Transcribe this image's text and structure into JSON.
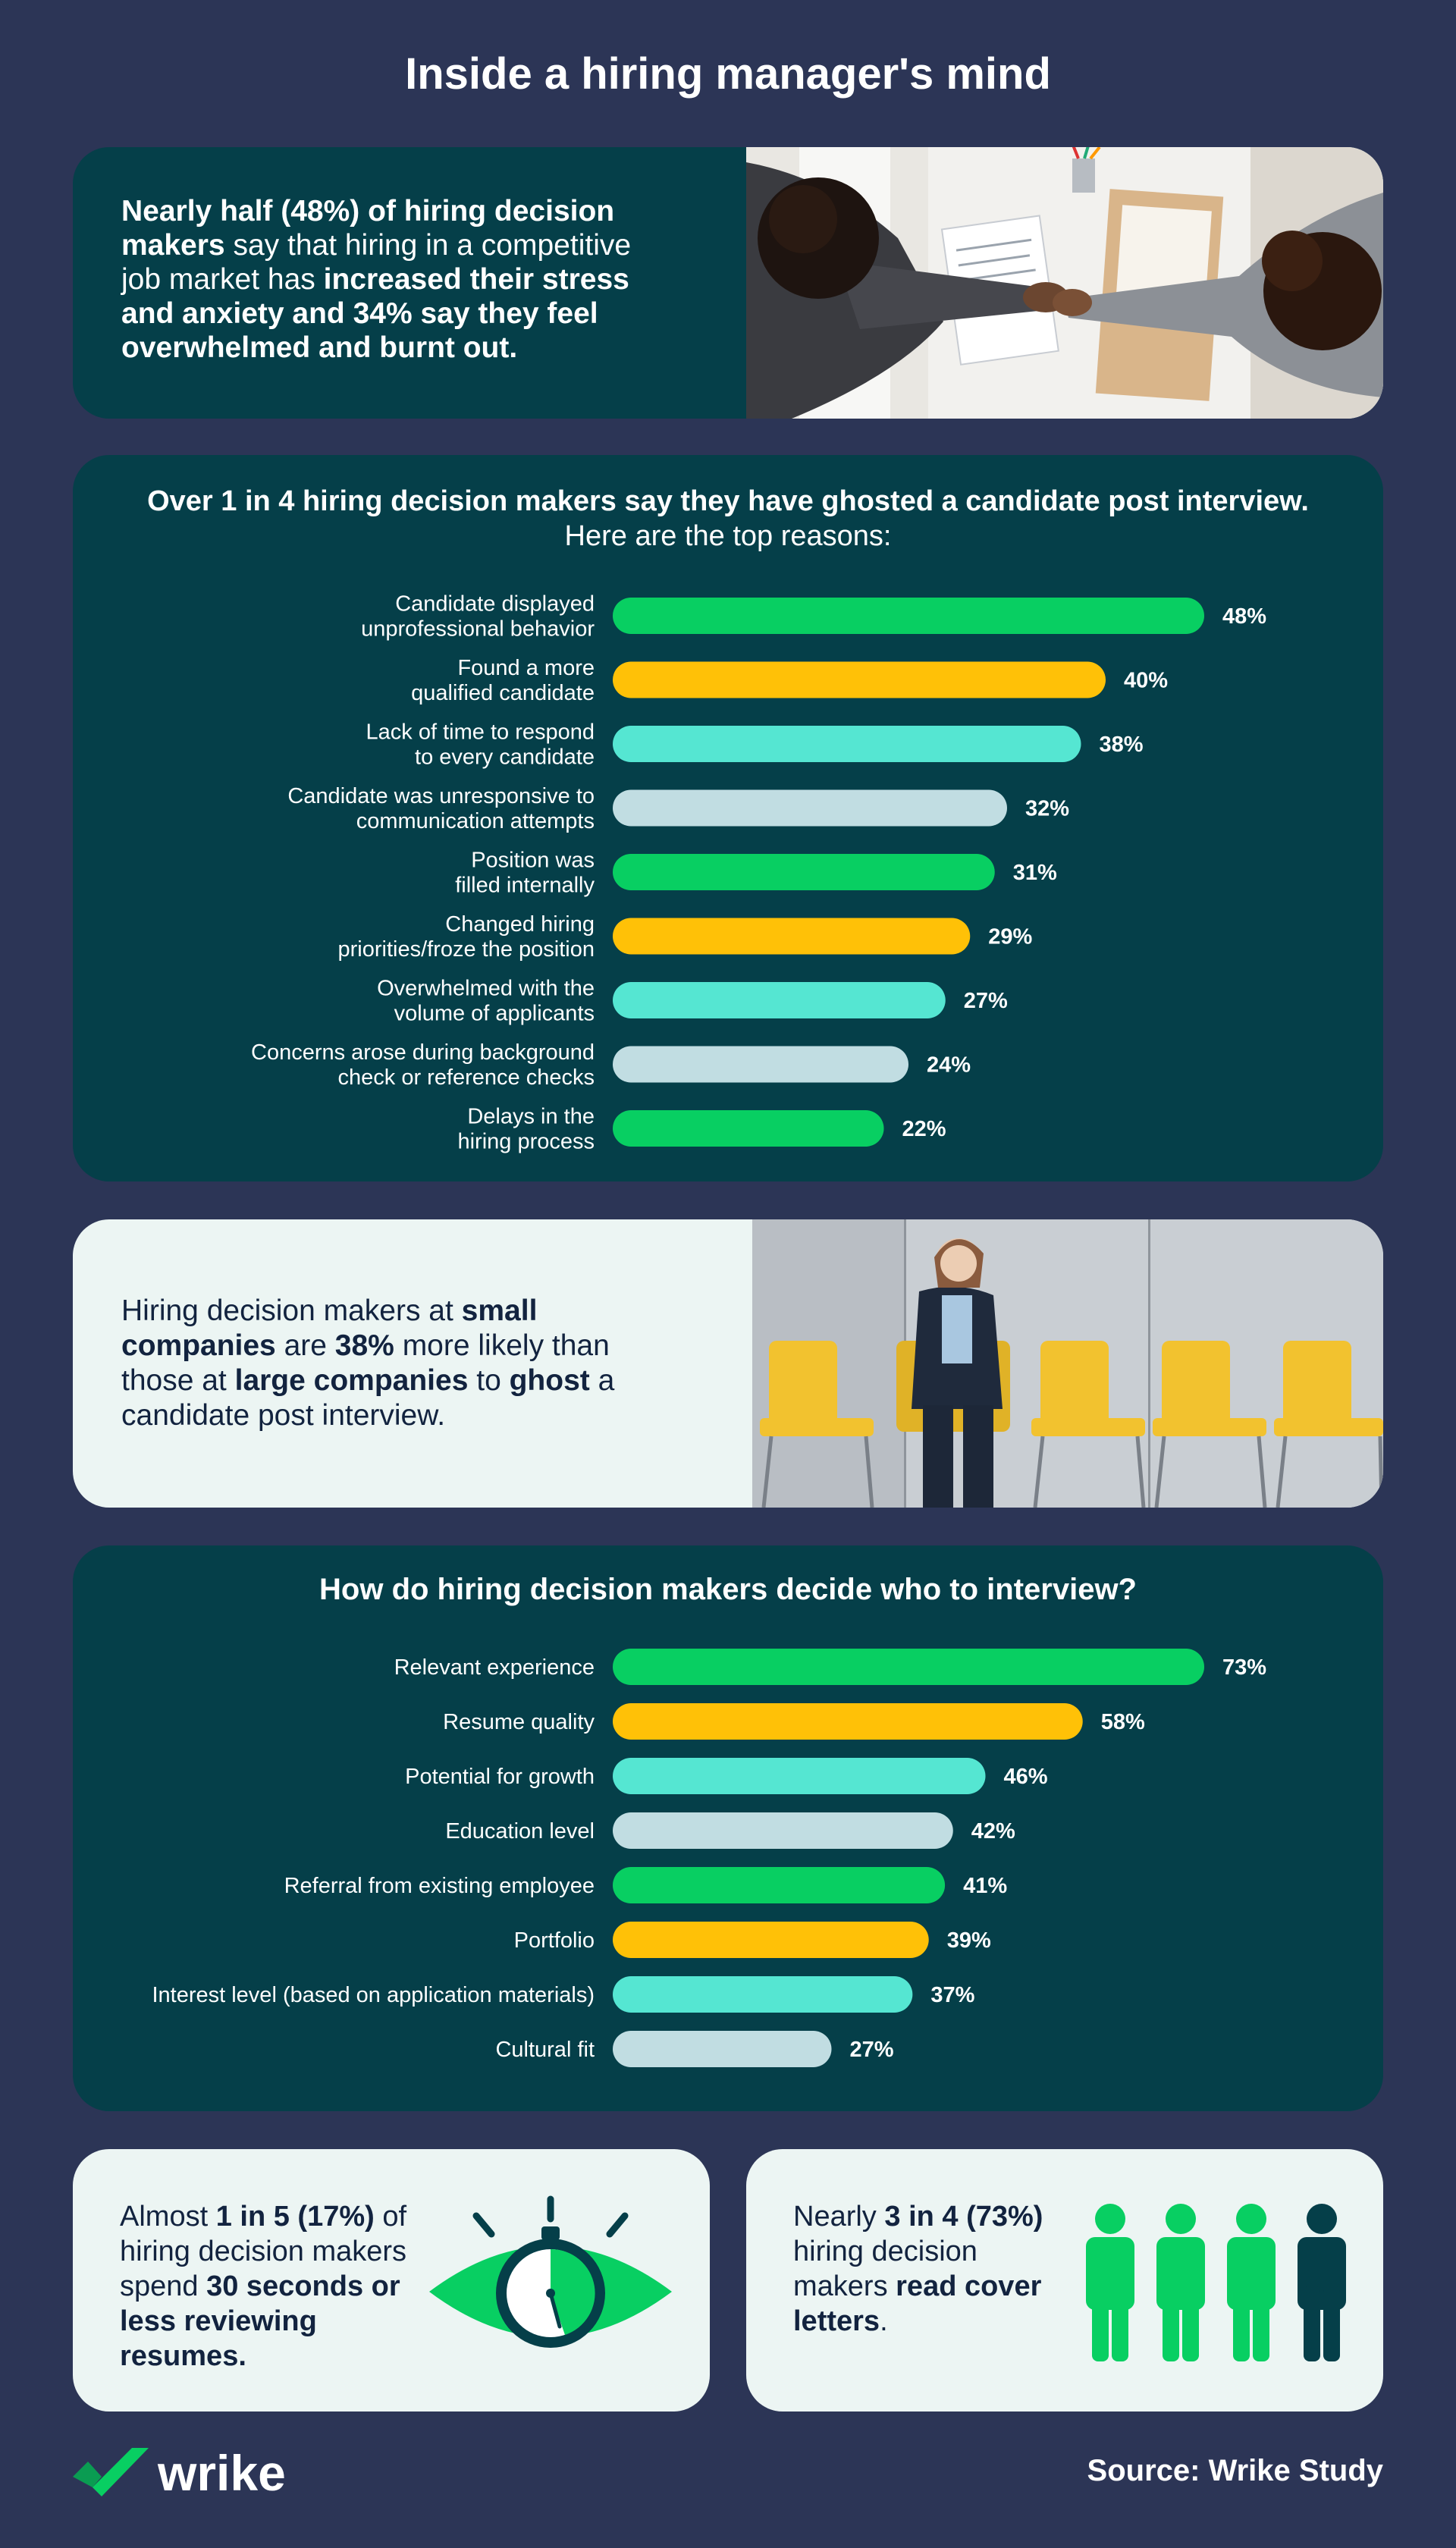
{
  "title": "Inside a hiring manager's mind",
  "intro": {
    "segments": [
      {
        "text": "Nearly half (48%) of hiring decision makers",
        "bold": true
      },
      {
        "text": " say that hiring in a competitive job market has ",
        "bold": false
      },
      {
        "text": "increased their stress and anxiety and 34% say they feel overwhelmed and burnt out.",
        "bold": true
      }
    ]
  },
  "ghosting": {
    "heading_bold": "Over 1 in 4 hiring decision makers say they have ghosted a candidate post interview.",
    "heading_regular": "Here are the top reasons:"
  },
  "small_companies": {
    "segments": [
      {
        "text": "Hiring decision makers at ",
        "bold": false
      },
      {
        "text": "small companies",
        "bold": true
      },
      {
        "text": " are ",
        "bold": false
      },
      {
        "text": "38%",
        "bold": true
      },
      {
        "text": " more likely than those at ",
        "bold": false
      },
      {
        "text": "large companies",
        "bold": true
      },
      {
        "text": " to ",
        "bold": false
      },
      {
        "text": "ghost",
        "bold": true
      },
      {
        "text": " a candidate post interview.",
        "bold": false
      }
    ]
  },
  "interview": {
    "heading": "How do hiring decision makers decide who to interview?"
  },
  "stat_resumes": {
    "segments": [
      {
        "text": "Almost ",
        "bold": false
      },
      {
        "text": "1 in 5 (17%)",
        "bold": true
      },
      {
        "text": " of hiring decision makers spend ",
        "bold": false
      },
      {
        "text": "30 seconds or less reviewing resumes.",
        "bold": true
      }
    ]
  },
  "stat_cover": {
    "segments": [
      {
        "text": "Nearly ",
        "bold": false
      },
      {
        "text": "3 in 4 (73%)",
        "bold": true
      },
      {
        "text": " hiring decision makers ",
        "bold": false
      },
      {
        "text": "read cover letters",
        "bold": true
      },
      {
        "text": ".",
        "bold": false
      }
    ]
  },
  "logo_text": "wrike",
  "source": "Source: Wrike Study",
  "colors": {
    "background": "#2c3556",
    "card_dark": "#053f49",
    "card_light": "#ecf5f3",
    "green": "#08cf62",
    "yellow": "#ffc107",
    "teal": "#55e6d2",
    "light_gray": "#c1dde2",
    "navy_text": "#12233f"
  },
  "chart_data": [
    {
      "type": "bar",
      "orientation": "horizontal",
      "title": "Over 1 in 4 hiring decision makers say they have ghosted a candidate post interview. Here are the top reasons:",
      "categories": [
        [
          "Candidate displayed",
          "unprofessional behavior"
        ],
        [
          "Found a more",
          "qualified candidate"
        ],
        [
          "Lack of time to respond",
          "to every candidate"
        ],
        [
          "Candidate was unresponsive to",
          "communication attempts"
        ],
        [
          "Position was",
          "filled internally"
        ],
        [
          "Changed hiring",
          "priorities/froze the position"
        ],
        [
          "Overwhelmed with the",
          "volume of applicants"
        ],
        [
          "Concerns arose during background",
          "check or reference checks"
        ],
        [
          "Delays in the",
          "hiring process"
        ]
      ],
      "values": [
        48,
        40,
        38,
        32,
        31,
        29,
        27,
        24,
        22
      ],
      "value_labels": [
        "48%",
        "40%",
        "38%",
        "32%",
        "31%",
        "29%",
        "27%",
        "24%",
        "22%"
      ],
      "colors": [
        "#08cf62",
        "#ffc107",
        "#55e6d2",
        "#c1dde2",
        "#08cf62",
        "#ffc107",
        "#55e6d2",
        "#c1dde2",
        "#08cf62"
      ],
      "xlim": [
        0,
        48
      ],
      "unit": "%"
    },
    {
      "type": "bar",
      "orientation": "horizontal",
      "title": "How do hiring decision makers decide who to interview?",
      "categories": [
        [
          "Relevant experience"
        ],
        [
          "Resume quality"
        ],
        [
          "Potential for growth"
        ],
        [
          "Education level"
        ],
        [
          "Referral from existing employee"
        ],
        [
          "Portfolio"
        ],
        [
          "Interest level (based on application materials)"
        ],
        [
          "Cultural fit"
        ]
      ],
      "values": [
        73,
        58,
        46,
        42,
        41,
        39,
        37,
        27
      ],
      "value_labels": [
        "73%",
        "58%",
        "46%",
        "42%",
        "41%",
        "39%",
        "37%",
        "27%"
      ],
      "colors": [
        "#08cf62",
        "#ffc107",
        "#55e6d2",
        "#c1dde2",
        "#08cf62",
        "#ffc107",
        "#55e6d2",
        "#c1dde2"
      ],
      "xlim": [
        0,
        73
      ],
      "unit": "%"
    }
  ]
}
